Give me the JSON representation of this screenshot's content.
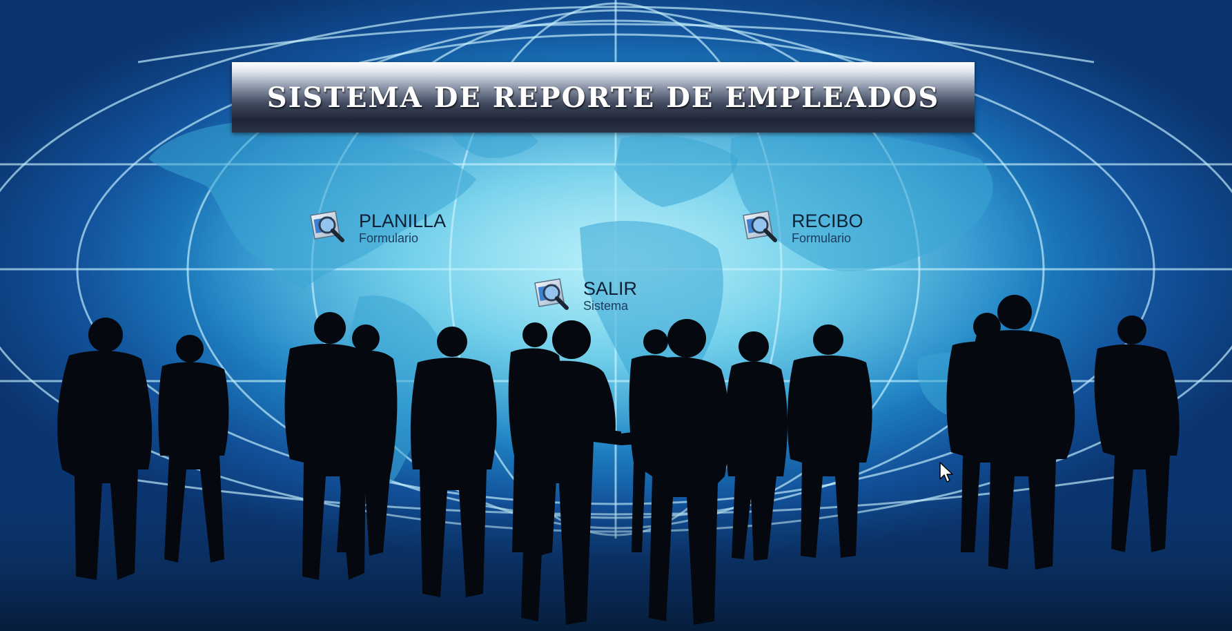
{
  "title": "Sistema de Reporte de Empleados",
  "menu": {
    "planilla": {
      "label": "PLANILLA",
      "sub": "Formulario",
      "icon": "search-document-icon"
    },
    "recibo": {
      "label": "RECIBO",
      "sub": "Formulario",
      "icon": "search-document-icon"
    },
    "salir": {
      "label": "SALIR",
      "sub": "Sistema",
      "icon": "search-document-icon"
    }
  },
  "colors": {
    "background_center": "#8fe4f4",
    "background_edge": "#0b3570",
    "silhouette": "#05090f",
    "menu_text": "#0d1f35"
  }
}
